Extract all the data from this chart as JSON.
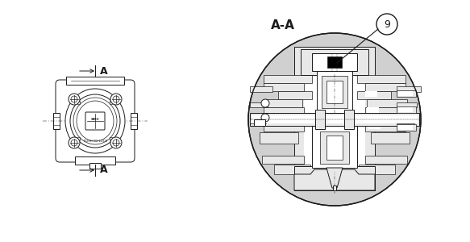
{
  "bg_color": "#ffffff",
  "line_color": "#1a1a1a",
  "gray_fill": "#b8b8b8",
  "mid_gray": "#d0d0d0",
  "light_gray": "#e8e8e8",
  "label_A_top": "A",
  "label_A_bottom": "A",
  "section_label": "A-A",
  "part_number": "9",
  "fig_width": 5.83,
  "fig_height": 3.0,
  "dpi": 100
}
